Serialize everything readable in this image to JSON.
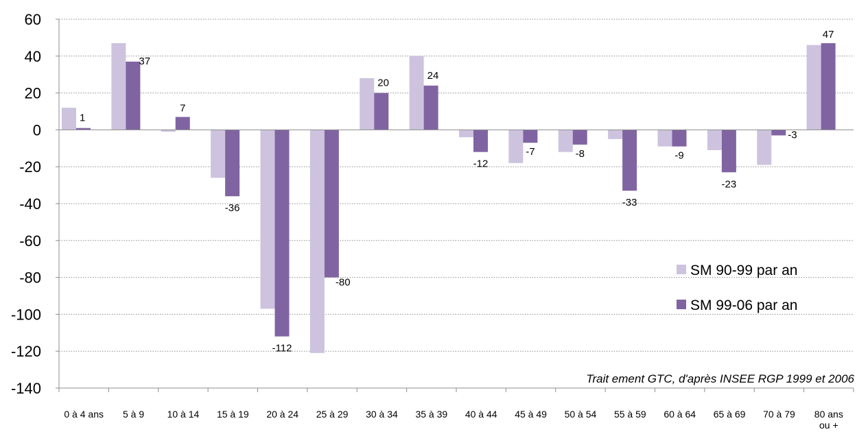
{
  "chart_data": {
    "type": "bar",
    "categories": [
      "0 à 4 ans",
      "5 à 9",
      "10 à 14",
      "15 à 19",
      "20 à 24",
      "25 à 29",
      "30 à 34",
      "35 à 39",
      "40 à 44",
      "45 à 49",
      "50 à 54",
      "55 à 59",
      "60 à 64",
      "65 à 69",
      "70 à 79",
      "80 ans ou +"
    ],
    "series": [
      {
        "name": "SM 90-99 par an",
        "color": "#cdc3de",
        "values": [
          12,
          47,
          -1,
          -26,
          -97,
          -121,
          28,
          40,
          -4,
          -18,
          -12,
          -5,
          -9,
          -11,
          -19,
          46
        ]
      },
      {
        "name": "SM 99-06 par an",
        "color": "#8064a2",
        "values": [
          1,
          37,
          7,
          -36,
          -112,
          -80,
          20,
          24,
          -12,
          -7,
          -8,
          -33,
          -9,
          -23,
          -3,
          47
        ],
        "labels": [
          "1",
          "37",
          "7",
          "-36",
          "-112",
          "-80",
          "20",
          "24",
          "-12",
          "-7",
          "-8",
          "-33",
          "-9",
          "-23",
          "-3",
          "47"
        ]
      }
    ],
    "title": "",
    "xlabel": "",
    "ylabel": "",
    "ylim": [
      -140,
      60
    ],
    "yticks": [
      "60",
      "40",
      "20",
      "0",
      "-20",
      "-40",
      "-60",
      "-80",
      "-100",
      "-120",
      "-140"
    ],
    "grid": true,
    "legend_position": "right"
  },
  "source_note": "Trait ement GTC, d'après INSEE RGP 1999 et 2006"
}
